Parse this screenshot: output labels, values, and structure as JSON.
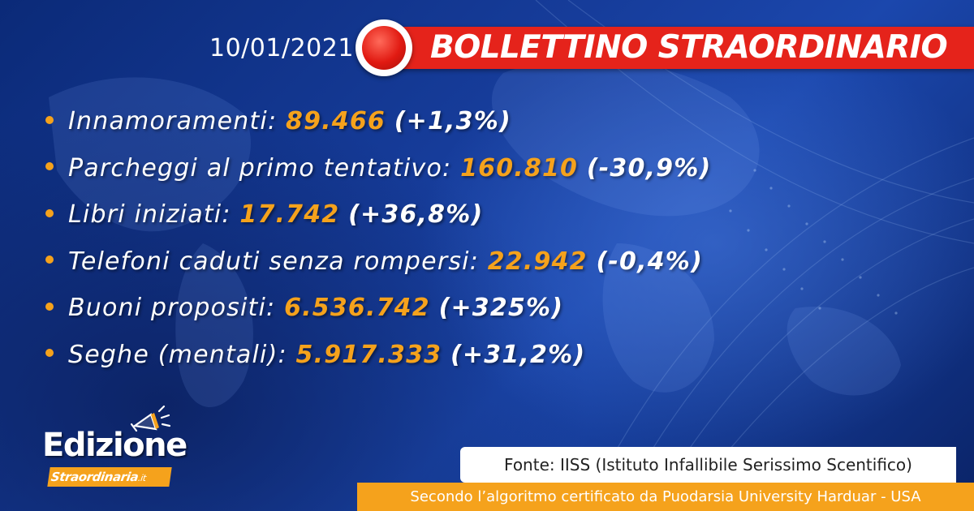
{
  "date": "10/01/2021",
  "banner": {
    "title": "BOLLETTINO STRAORDINARIO",
    "record_icon": "record-button-icon",
    "accent_color": "#e5231b"
  },
  "stats": [
    {
      "label": "Innamoramenti:",
      "value": "89.466",
      "change": "(+1,3%)"
    },
    {
      "label": "Parcheggi al primo tentativo:",
      "value": "160.810",
      "change": "(-30,9%)"
    },
    {
      "label": "Libri iniziati:",
      "value": "17.742",
      "change": "(+36,8%)"
    },
    {
      "label": "Telefoni caduti senza rompersi:",
      "value": "22.942",
      "change": "(-0,4%)"
    },
    {
      "label": "Buoni propositi:",
      "value": "6.536.742",
      "change": "(+325%)"
    },
    {
      "label": "Seghe (mentali):",
      "value": "5.917.333",
      "change": "(+31,2%)"
    }
  ],
  "logo": {
    "main": "Edizione",
    "sub": "Straordinaria",
    "domain": ".it",
    "icon": "megaphone-icon"
  },
  "source": "Fonte: IISS (Istituto Infallibile Serissimo Scentifico)",
  "footer": "Secondo l’algoritmo certificato da Puodarsia University Harduar - USA",
  "colors": {
    "highlight": "#f5a21c",
    "background": "#163c9a"
  }
}
